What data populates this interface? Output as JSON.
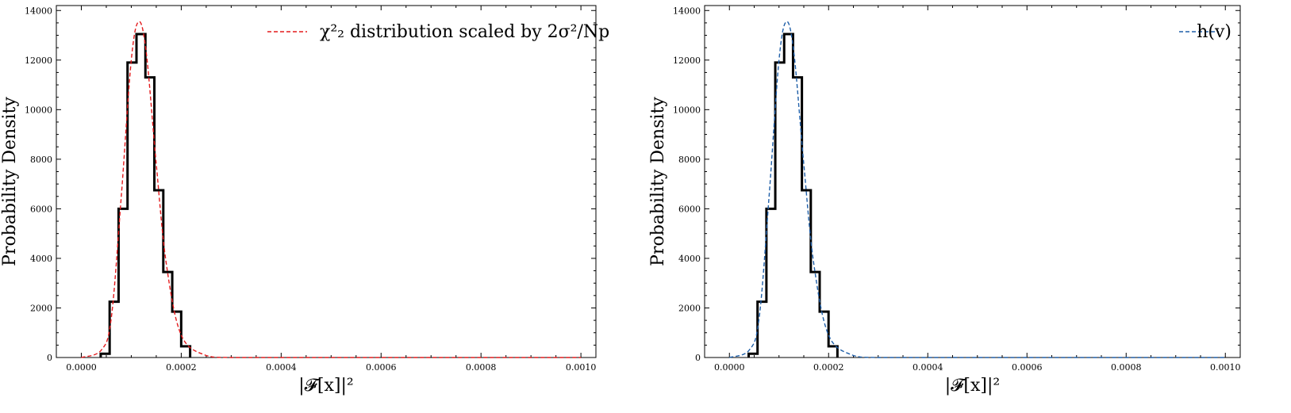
{
  "chart_data": [
    {
      "type": "line",
      "xlabel": "|𝓕[x]|²",
      "ylabel": "Probability Density",
      "xlim": [
        -5e-05,
        0.00103
      ],
      "ylim": [
        0,
        14200
      ],
      "xticks": [
        0.0,
        0.0002,
        0.0004,
        0.0006,
        0.0008,
        0.001
      ],
      "xtick_labels": [
        "0.0000",
        "0.0002",
        "0.0004",
        "0.0006",
        "0.0008",
        "0.0010"
      ],
      "yticks": [
        0,
        2000,
        4000,
        6000,
        8000,
        10000,
        12000,
        14000
      ],
      "ytick_labels": [
        "0",
        "2000",
        "4000",
        "6000",
        "8000",
        "10000",
        "12000",
        "14000"
      ],
      "legend_position": "top-right",
      "histogram": {
        "color": "#000000",
        "bin_edges": [
          3.88e-05,
          5.67e-05,
          7.46e-05,
          9.25e-05,
          0.0001104,
          0.0001283,
          0.0001462,
          0.0001641,
          0.000182,
          0.0001999,
          0.0002178
        ],
        "values": [
          150,
          2250,
          6000,
          11900,
          13050,
          11300,
          6750,
          3450,
          1850,
          450
        ]
      },
      "series": [
        {
          "name": "χ²₂ distribution scaled by 2σ²/Np",
          "color": "#e31a1c",
          "style": "dashed",
          "x": [
            0,
            4e-05,
            6e-05,
            8e-05,
            0.0001,
            0.000115,
            0.00013,
            0.00015,
            0.00017,
            0.0002,
            0.00025,
            0.0003,
            0.0005,
            0.001
          ],
          "values": [
            0,
            300,
            1600,
            6500,
            12000,
            13550,
            12300,
            7800,
            3800,
            900,
            80,
            0,
            0,
            0
          ]
        }
      ]
    },
    {
      "type": "line",
      "xlabel": "|𝓕[x]|²",
      "ylabel": "Probability Density",
      "xlim": [
        -5e-05,
        0.00103
      ],
      "ylim": [
        0,
        14200
      ],
      "xticks": [
        0.0,
        0.0002,
        0.0004,
        0.0006,
        0.0008,
        0.001
      ],
      "xtick_labels": [
        "0.0000",
        "0.0002",
        "0.0004",
        "0.0006",
        "0.0008",
        "0.0010"
      ],
      "yticks": [
        0,
        2000,
        4000,
        6000,
        8000,
        10000,
        12000,
        14000
      ],
      "ytick_labels": [
        "0",
        "2000",
        "4000",
        "6000",
        "8000",
        "10000",
        "12000",
        "14000"
      ],
      "legend_position": "top-right",
      "histogram": {
        "color": "#000000",
        "bin_edges": [
          3.88e-05,
          5.67e-05,
          7.46e-05,
          9.25e-05,
          0.0001104,
          0.0001283,
          0.0001462,
          0.0001641,
          0.000182,
          0.0001999,
          0.0002178
        ],
        "values": [
          150,
          2250,
          6000,
          11900,
          13050,
          11300,
          6750,
          3450,
          1850,
          450
        ]
      },
      "series": [
        {
          "name": "h(v)",
          "color": "#1f5fa8",
          "style": "dashed",
          "x": [
            0,
            4e-05,
            6e-05,
            8e-05,
            0.0001,
            0.000115,
            0.00013,
            0.00015,
            0.00017,
            0.0002,
            0.00025,
            0.0003,
            0.0005,
            0.001
          ],
          "values": [
            0,
            300,
            1600,
            6500,
            12000,
            13550,
            12300,
            7800,
            3800,
            900,
            80,
            0,
            0,
            0
          ]
        }
      ]
    }
  ]
}
